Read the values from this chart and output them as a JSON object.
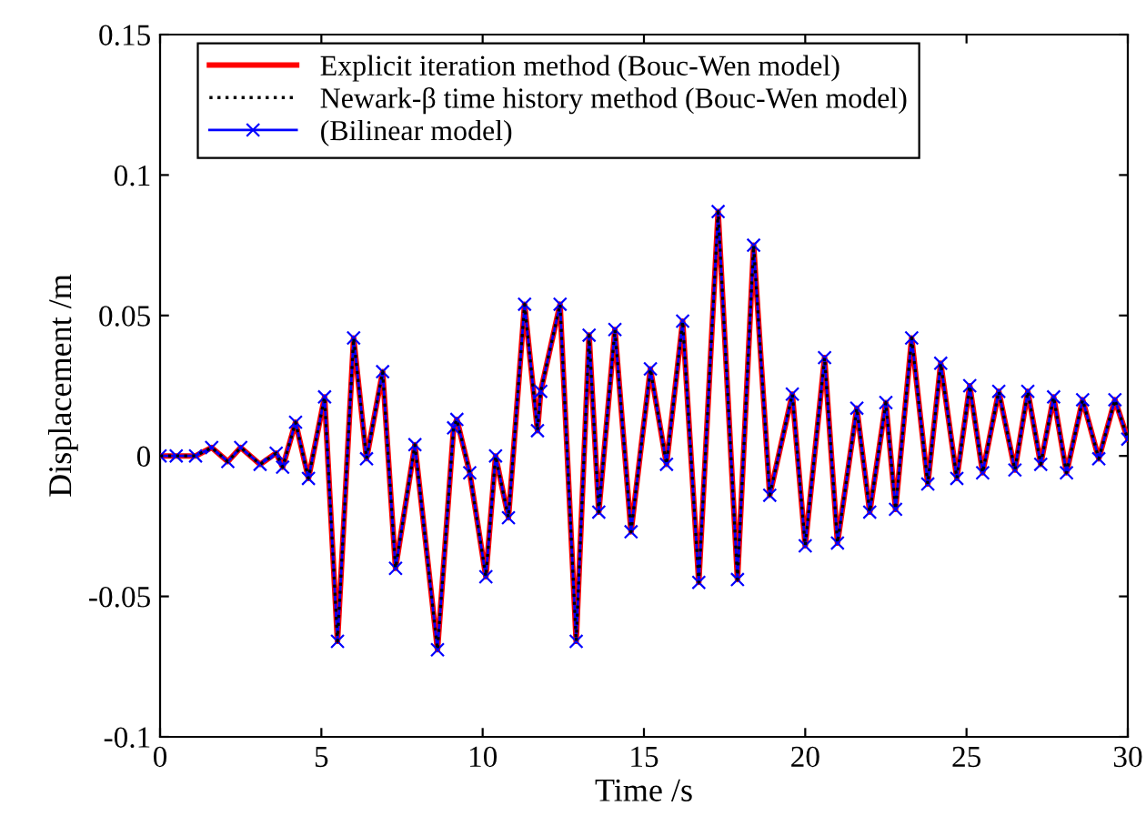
{
  "chart_data": {
    "type": "line",
    "xlabel": "Time /s",
    "ylabel": "Displacement /m",
    "x": [
      0,
      0.5,
      1.1,
      1.6,
      2.1,
      2.5,
      3.1,
      3.6,
      3.8,
      4.2,
      4.6,
      5.1,
      5.5,
      6.0,
      6.4,
      6.9,
      7.3,
      7.9,
      8.6,
      9.1,
      9.2,
      9.6,
      10.1,
      10.4,
      10.8,
      11.3,
      11.7,
      11.8,
      12.4,
      12.9,
      13.3,
      13.6,
      14.1,
      14.6,
      15.2,
      15.7,
      16.2,
      16.7,
      17.3,
      17.9,
      18.4,
      18.9,
      19.6,
      20.0,
      20.6,
      21.0,
      21.6,
      22.0,
      22.5,
      22.8,
      23.3,
      23.8,
      24.2,
      24.7,
      25.1,
      25.5,
      26.0,
      26.5,
      26.9,
      27.3,
      27.7,
      28.1,
      28.6,
      29.1,
      29.6,
      30
    ],
    "series": [
      {
        "name": "Explicit iteration method (Bouc-Wen model)",
        "color": "#ff0000",
        "line_style": "solid",
        "marker": "none",
        "values": [
          0,
          0,
          0,
          0.003,
          -0.002,
          0.003,
          -0.003,
          0.001,
          -0.004,
          0.012,
          -0.008,
          0.021,
          -0.066,
          0.042,
          -0.001,
          0.03,
          -0.04,
          0.004,
          -0.069,
          0.01,
          0.013,
          -0.006,
          -0.043,
          0,
          -0.022,
          0.054,
          0.009,
          0.023,
          0.054,
          -0.066,
          0.043,
          -0.02,
          0.045,
          -0.027,
          0.031,
          -0.003,
          0.048,
          -0.045,
          0.087,
          -0.044,
          0.075,
          -0.014,
          0.022,
          -0.032,
          0.035,
          -0.031,
          0.017,
          -0.02,
          0.019,
          -0.019,
          0.042,
          -0.01,
          0.033,
          -0.008,
          0.025,
          -0.006,
          0.023,
          -0.005,
          0.023,
          -0.003,
          0.021,
          -0.006,
          0.02,
          -0.001,
          0.02,
          0.006
        ]
      },
      {
        "name": "Newark-β time history method (Bouc-Wen model)",
        "color": "#000000",
        "line_style": "dotted",
        "marker": "none",
        "values": [
          0,
          0,
          0,
          0.003,
          -0.002,
          0.003,
          -0.003,
          0.001,
          -0.004,
          0.012,
          -0.008,
          0.021,
          -0.066,
          0.042,
          -0.001,
          0.03,
          -0.04,
          0.004,
          -0.069,
          0.01,
          0.013,
          -0.006,
          -0.043,
          0,
          -0.022,
          0.054,
          0.009,
          0.023,
          0.054,
          -0.066,
          0.043,
          -0.02,
          0.045,
          -0.027,
          0.031,
          -0.003,
          0.048,
          -0.045,
          0.087,
          -0.044,
          0.075,
          -0.014,
          0.022,
          -0.032,
          0.035,
          -0.031,
          0.017,
          -0.02,
          0.019,
          -0.019,
          0.042,
          -0.01,
          0.033,
          -0.008,
          0.025,
          -0.006,
          0.023,
          -0.005,
          0.023,
          -0.003,
          0.021,
          -0.006,
          0.02,
          -0.001,
          0.02,
          0.006
        ]
      },
      {
        "name": "(Bilinear model)",
        "color": "#0000ff",
        "line_style": "solid",
        "marker": "cross",
        "values": [
          0,
          0,
          0,
          0.003,
          -0.002,
          0.003,
          -0.003,
          0.001,
          -0.004,
          0.012,
          -0.008,
          0.021,
          -0.066,
          0.042,
          -0.001,
          0.03,
          -0.04,
          0.004,
          -0.069,
          0.01,
          0.013,
          -0.006,
          -0.043,
          0,
          -0.022,
          0.054,
          0.009,
          0.023,
          0.054,
          -0.066,
          0.043,
          -0.02,
          0.045,
          -0.027,
          0.031,
          -0.003,
          0.048,
          -0.045,
          0.087,
          -0.044,
          0.075,
          -0.014,
          0.022,
          -0.032,
          0.035,
          -0.031,
          0.017,
          -0.02,
          0.019,
          -0.019,
          0.042,
          -0.01,
          0.033,
          -0.008,
          0.025,
          -0.006,
          0.023,
          -0.005,
          0.023,
          -0.003,
          0.021,
          -0.006,
          0.02,
          -0.001,
          0.02,
          0.006
        ]
      }
    ],
    "xlim": [
      0,
      30
    ],
    "xticks": [
      0,
      5,
      10,
      15,
      20,
      25,
      30
    ],
    "ylim": [
      -0.1,
      0.15
    ],
    "yticks": [
      {
        "value": -0.1,
        "label": "-0.1"
      },
      {
        "value": -0.05,
        "label": "-0.05"
      },
      0,
      0.05,
      0.1,
      0.15
    ],
    "grid": false,
    "legend": "top left"
  }
}
